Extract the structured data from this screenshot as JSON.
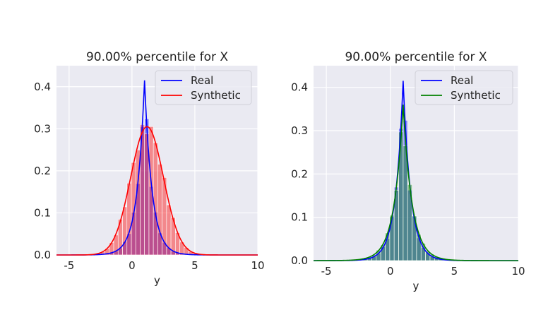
{
  "chart_data": [
    {
      "type": "histogram+kde",
      "title": "90.00% percentile for X",
      "xlabel": "y",
      "ylabel": "",
      "xlim": [
        -6,
        10
      ],
      "ylim": [
        0,
        0.45
      ],
      "xticks": [
        -5,
        0,
        5,
        10
      ],
      "yticks": [
        0.0,
        0.1,
        0.2,
        0.3,
        0.4
      ],
      "grid": true,
      "legend_position": "top-right",
      "series": [
        {
          "name": "Real",
          "color": "#0000ff",
          "mean": 1.0,
          "scale": 0.6,
          "kind": "laplace",
          "peak": 0.415
        },
        {
          "name": "Synthetic",
          "color": "#ff0000",
          "mean": 1.2,
          "sd": 1.3,
          "kind": "normal",
          "peak": 0.305
        }
      ]
    },
    {
      "type": "histogram+kde",
      "title": "90.00% percentile for X",
      "xlabel": "y",
      "ylabel": "",
      "xlim": [
        -6,
        10
      ],
      "ylim": [
        0,
        0.45
      ],
      "xticks": [
        -5,
        0,
        5,
        10
      ],
      "yticks": [
        0.0,
        0.1,
        0.2,
        0.3,
        0.4
      ],
      "grid": true,
      "legend_position": "top-right",
      "series": [
        {
          "name": "Real",
          "color": "#0000ff",
          "mean": 1.0,
          "scale": 0.6,
          "kind": "laplace",
          "peak": 0.415
        },
        {
          "name": "Synthetic",
          "color": "#008000",
          "mean": 1.0,
          "scale": 0.7,
          "kind": "laplace",
          "peak": 0.36
        }
      ]
    }
  ]
}
